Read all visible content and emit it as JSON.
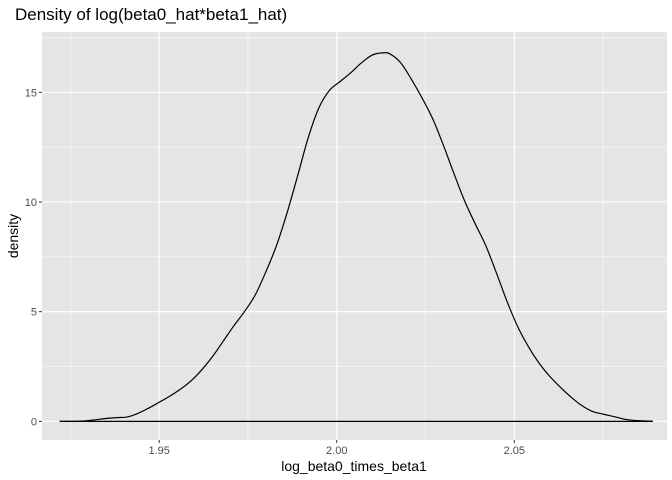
{
  "chart_data": {
    "type": "area",
    "title": "Density of log(beta0_hat*beta1_hat)",
    "xlabel": "log_beta0_times_beta1",
    "ylabel": "density",
    "xlim": [
      1.917,
      2.093
    ],
    "ylim": [
      -0.85,
      17.75
    ],
    "x_ticks": [
      1.95,
      2.0,
      2.05
    ],
    "x_tick_labels": [
      "1.95",
      "2.00",
      "2.05"
    ],
    "y_ticks": [
      0,
      5,
      10,
      15
    ],
    "y_tick_labels": [
      "0",
      "5",
      "10",
      "15"
    ],
    "grid": true,
    "colors": {
      "panel": "#e5e5e5",
      "grid_major": "#ffffff",
      "line": "#000000",
      "tick_label": "#4d4d4d"
    },
    "series": [
      {
        "x": [
          1.922,
          1.925,
          1.929,
          1.932,
          1.935,
          1.938,
          1.941,
          1.944,
          1.947,
          1.95,
          1.953,
          1.956,
          1.959,
          1.962,
          1.965,
          1.968,
          1.971,
          1.974,
          1.977,
          1.98,
          1.983,
          1.986,
          1.989,
          1.992,
          1.995,
          1.998,
          2.001,
          2.004,
          2.007,
          2.01,
          2.013,
          2.015,
          2.018,
          2.021,
          2.024,
          2.027,
          2.03,
          2.033,
          2.036,
          2.039,
          2.042,
          2.045,
          2.048,
          2.051,
          2.054,
          2.057,
          2.06,
          2.063,
          2.066,
          2.069,
          2.072,
          2.075,
          2.078,
          2.081,
          2.084,
          2.087,
          2.089
        ],
        "y": [
          0.0,
          0.0,
          0.02,
          0.07,
          0.13,
          0.17,
          0.2,
          0.36,
          0.6,
          0.87,
          1.15,
          1.47,
          1.85,
          2.35,
          2.95,
          3.65,
          4.35,
          5.0,
          5.75,
          6.8,
          8.0,
          9.5,
          11.2,
          12.95,
          14.3,
          15.1,
          15.5,
          15.9,
          16.35,
          16.7,
          16.8,
          16.75,
          16.35,
          15.6,
          14.75,
          13.8,
          12.6,
          11.3,
          10.05,
          9.0,
          8.0,
          6.75,
          5.45,
          4.3,
          3.4,
          2.65,
          2.05,
          1.55,
          1.1,
          0.72,
          0.45,
          0.33,
          0.22,
          0.1,
          0.04,
          0.02,
          0.0
        ]
      }
    ]
  }
}
